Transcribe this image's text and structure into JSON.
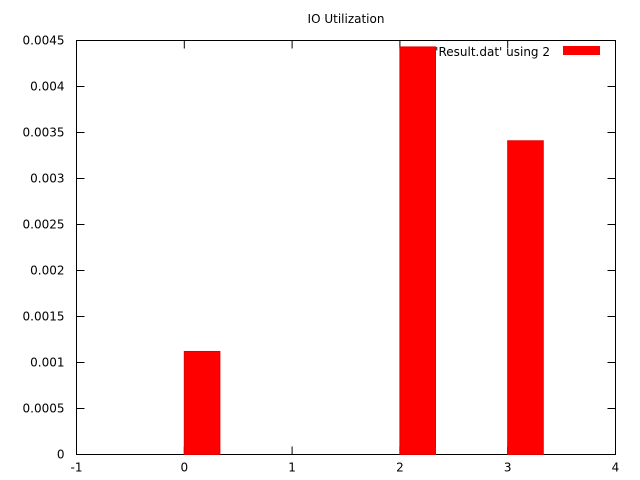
{
  "chart_data": {
    "type": "bar",
    "title": "IO Utilization",
    "xlabel": "",
    "ylabel": "",
    "xlim": [
      -1,
      4
    ],
    "ylim": [
      0,
      0.0045
    ],
    "x_ticks": [
      -1,
      0,
      1,
      2,
      3,
      4
    ],
    "y_ticks": [
      0,
      0.0005,
      0.001,
      0.0015,
      0.002,
      0.0025,
      0.003,
      0.0035,
      0.004,
      0.0045
    ],
    "x_tick_labels": [
      "-1",
      "0",
      "1",
      "2",
      "3",
      "4"
    ],
    "y_tick_labels": [
      "0",
      "0.0005",
      "0.001",
      "0.0015",
      "0.002",
      "0.0025",
      "0.003",
      "0.0035",
      "0.004",
      "0.0045"
    ],
    "grid": false,
    "legend_position": "top-right",
    "bar_offset": 0.17,
    "bar_width": 0.33,
    "series": [
      {
        "name": "'Result.dat' using 2",
        "color": "#ff0000",
        "x": [
          0,
          1,
          2,
          3
        ],
        "values": [
          0.00112,
          0,
          0.00443,
          0.00341
        ]
      }
    ]
  }
}
